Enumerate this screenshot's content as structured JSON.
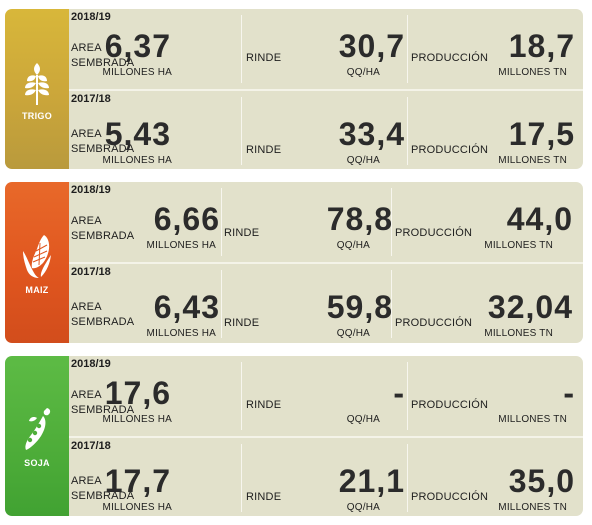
{
  "labels": {
    "area": "AREA SEMBRADA",
    "rinde": "RINDE",
    "produccion": "PRODUCCIÓN",
    "unit_area": "MILLONES HA",
    "unit_rinde": "QQ/HA",
    "unit_prod": "MILLONES TN"
  },
  "colors": {
    "trigo": "#cba63a",
    "maiz": "#e0561f",
    "soja": "#4fae3a",
    "panel": "#e2e1cb",
    "value_text": "#2b2b2b"
  },
  "crops": [
    {
      "name": "TRIGO",
      "icon": "wheat-icon",
      "seasons": [
        {
          "season": "2018/19",
          "area": "6,37",
          "rinde": "30,7",
          "produccion": "18,7"
        },
        {
          "season": "2017/18",
          "area": "5,43",
          "rinde": "33,4",
          "produccion": "17,5"
        }
      ]
    },
    {
      "name": "MAIZ",
      "icon": "corn-icon",
      "seasons": [
        {
          "season": "2018/19",
          "area": "6,66",
          "rinde": "78,8",
          "produccion": "44,0"
        },
        {
          "season": "2017/18",
          "area": "6,43",
          "rinde": "59,8",
          "produccion": "32,04"
        }
      ]
    },
    {
      "name": "SOJA",
      "icon": "soybean-icon",
      "seasons": [
        {
          "season": "2018/19",
          "area": "17,6",
          "rinde": "-",
          "produccion": "-"
        },
        {
          "season": "2017/18",
          "area": "17,7",
          "rinde": "21,1",
          "produccion": "35,0"
        }
      ]
    }
  ]
}
